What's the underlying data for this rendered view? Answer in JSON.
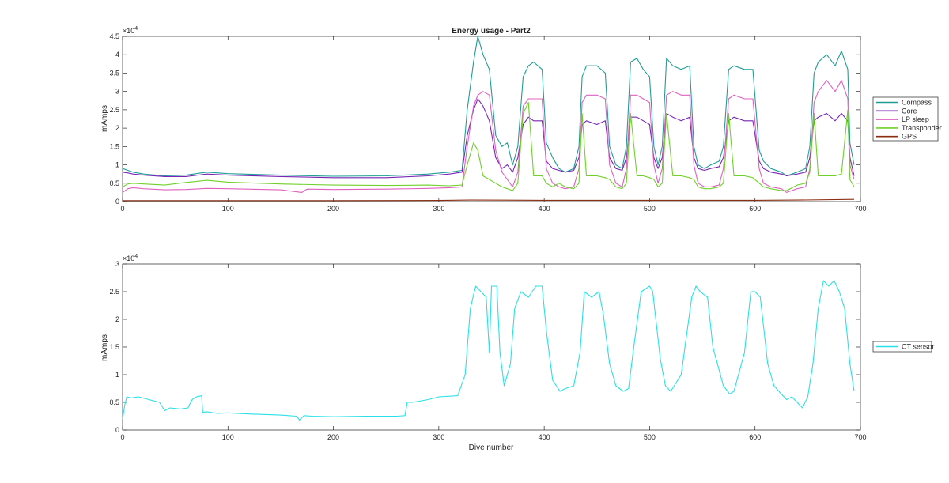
{
  "chart_data": [
    {
      "type": "line",
      "title": "Energy usage - Part2",
      "xlabel": "",
      "ylabel": "mAmps",
      "xlim": [
        0,
        700
      ],
      "ylim": [
        0,
        45000
      ],
      "y_exponent_label": "×10",
      "y_exponent": "4",
      "xticks": [
        "0",
        "100",
        "200",
        "300",
        "400",
        "500",
        "600",
        "700"
      ],
      "yticks": [
        "0",
        "0.5",
        "1",
        "1.5",
        "2",
        "2.5",
        "3",
        "3.5",
        "4",
        "4.5"
      ],
      "xtick_values": [
        0,
        100,
        200,
        300,
        400,
        500,
        600,
        700
      ],
      "ytick_values": [
        0,
        5000,
        10000,
        15000,
        20000,
        25000,
        30000,
        35000,
        40000,
        45000
      ],
      "legend_position": "right",
      "series": [
        {
          "name": "Compass",
          "color": "#1f9e96",
          "x": [
            0,
            5,
            10,
            20,
            40,
            60,
            80,
            100,
            150,
            200,
            250,
            290,
            310,
            322,
            327,
            333,
            337,
            342,
            348,
            354,
            360,
            365,
            370,
            375,
            380,
            385,
            390,
            398,
            402,
            408,
            414,
            420,
            428,
            433,
            436,
            440,
            450,
            458,
            462,
            468,
            474,
            478,
            482,
            488,
            494,
            500,
            504,
            508,
            512,
            516,
            522,
            530,
            538,
            542,
            546,
            552,
            558,
            566,
            570,
            575,
            580,
            590,
            598,
            604,
            608,
            615,
            625,
            630,
            640,
            648,
            652,
            656,
            660,
            668,
            676,
            682,
            688,
            690,
            694
          ],
          "y": [
            9000,
            8500,
            8000,
            7500,
            7000,
            7200,
            8000,
            7600,
            7200,
            6900,
            7000,
            7500,
            8000,
            8500,
            25000,
            38000,
            45000,
            40000,
            36000,
            18000,
            15000,
            16000,
            10000,
            15000,
            34000,
            37000,
            38000,
            36000,
            16000,
            12000,
            9000,
            8000,
            9000,
            15000,
            34000,
            37000,
            37000,
            35000,
            15000,
            10000,
            9000,
            15000,
            38000,
            39000,
            36000,
            34000,
            15000,
            10000,
            15000,
            39000,
            37000,
            36000,
            37000,
            15000,
            10000,
            9000,
            10000,
            11000,
            15000,
            36000,
            37000,
            36000,
            36000,
            14000,
            11000,
            9000,
            8000,
            7000,
            8000,
            9000,
            15000,
            35000,
            38000,
            40000,
            37000,
            41000,
            36000,
            16000,
            10000
          ]
        },
        {
          "name": "Core",
          "color": "#7a26b5",
          "x": [
            0,
            5,
            10,
            20,
            40,
            60,
            80,
            100,
            150,
            200,
            250,
            290,
            310,
            322,
            327,
            333,
            337,
            342,
            348,
            354,
            360,
            365,
            370,
            375,
            380,
            385,
            390,
            398,
            402,
            408,
            414,
            420,
            428,
            433,
            436,
            440,
            450,
            458,
            462,
            468,
            474,
            478,
            482,
            488,
            494,
            500,
            504,
            508,
            512,
            516,
            522,
            530,
            538,
            542,
            546,
            552,
            558,
            566,
            570,
            575,
            580,
            590,
            598,
            604,
            608,
            615,
            625,
            630,
            640,
            648,
            652,
            656,
            660,
            668,
            676,
            682,
            688,
            690,
            694
          ],
          "y": [
            8000,
            7800,
            7500,
            7200,
            6800,
            6800,
            7500,
            7200,
            6800,
            6500,
            6500,
            7000,
            7500,
            8000,
            18000,
            25000,
            28000,
            26000,
            22000,
            12000,
            9000,
            10000,
            8000,
            12000,
            21000,
            23000,
            22000,
            22000,
            11000,
            9000,
            8500,
            8000,
            8500,
            12000,
            21000,
            22000,
            21000,
            22000,
            12000,
            9000,
            8500,
            12000,
            23000,
            23000,
            22000,
            21000,
            12000,
            9000,
            12000,
            24000,
            23000,
            22000,
            23000,
            12000,
            9000,
            8500,
            9000,
            9500,
            12000,
            22000,
            23000,
            22000,
            22000,
            11000,
            9000,
            8000,
            7500,
            7000,
            7500,
            8000,
            12000,
            22000,
            23000,
            24000,
            22000,
            24000,
            22000,
            12000,
            7000
          ]
        },
        {
          "name": "LP sleep",
          "color": "#e060c0",
          "x": [
            0,
            5,
            10,
            20,
            40,
            60,
            80,
            100,
            150,
            170,
            175,
            200,
            250,
            290,
            310,
            322,
            327,
            333,
            337,
            342,
            348,
            354,
            360,
            365,
            370,
            375,
            380,
            385,
            390,
            398,
            402,
            408,
            414,
            420,
            428,
            433,
            436,
            440,
            450,
            458,
            462,
            468,
            474,
            478,
            482,
            488,
            494,
            500,
            504,
            508,
            512,
            516,
            522,
            530,
            538,
            542,
            546,
            552,
            558,
            566,
            570,
            575,
            580,
            590,
            598,
            604,
            608,
            615,
            625,
            630,
            640,
            648,
            652,
            656,
            660,
            668,
            676,
            682,
            688,
            690,
            694
          ],
          "y": [
            2500,
            3500,
            3800,
            3500,
            3200,
            3300,
            3600,
            3500,
            3200,
            2500,
            3400,
            3300,
            3400,
            3600,
            3800,
            4000,
            15000,
            26000,
            29000,
            30000,
            29000,
            14000,
            8000,
            6000,
            4000,
            8000,
            26000,
            28000,
            28000,
            28000,
            9000,
            5000,
            4000,
            3500,
            4000,
            9000,
            27000,
            29000,
            29000,
            28000,
            10000,
            5000,
            4000,
            9000,
            29000,
            29000,
            28000,
            27000,
            10000,
            5000,
            9000,
            29000,
            30000,
            29000,
            29000,
            10000,
            5000,
            4000,
            4000,
            4500,
            9000,
            28000,
            29000,
            28000,
            28000,
            9000,
            5000,
            4000,
            3500,
            2500,
            3500,
            4000,
            9000,
            27000,
            30000,
            33000,
            30000,
            33000,
            28000,
            10000,
            6000
          ]
        },
        {
          "name": "Transponder",
          "color": "#6fd12a",
          "x": [
            0,
            5,
            10,
            20,
            40,
            60,
            80,
            100,
            150,
            200,
            250,
            290,
            310,
            322,
            327,
            333,
            337,
            342,
            348,
            354,
            360,
            365,
            370,
            375,
            380,
            385,
            390,
            398,
            402,
            408,
            414,
            420,
            428,
            433,
            436,
            440,
            450,
            458,
            462,
            468,
            474,
            478,
            482,
            488,
            494,
            500,
            504,
            508,
            512,
            516,
            522,
            530,
            538,
            542,
            546,
            552,
            558,
            566,
            570,
            575,
            580,
            590,
            598,
            604,
            608,
            615,
            625,
            630,
            640,
            648,
            652,
            656,
            660,
            668,
            676,
            682,
            688,
            690,
            694
          ],
          "y": [
            4000,
            4800,
            5000,
            4800,
            4500,
            5200,
            5800,
            5300,
            4800,
            4500,
            4400,
            4500,
            4300,
            4500,
            10000,
            16000,
            14000,
            7000,
            6000,
            5000,
            4000,
            3500,
            3000,
            5000,
            24000,
            27000,
            7000,
            7000,
            5000,
            4000,
            5000,
            4000,
            3500,
            5000,
            24000,
            7000,
            7000,
            6500,
            6000,
            4000,
            3500,
            5000,
            24000,
            7000,
            7000,
            6500,
            6000,
            4000,
            5000,
            24000,
            7000,
            7000,
            6500,
            6000,
            4000,
            3500,
            3500,
            4000,
            5000,
            24000,
            7000,
            7000,
            6500,
            5000,
            4000,
            3500,
            3000,
            3000,
            4500,
            5000,
            8000,
            24000,
            7000,
            7000,
            7000,
            7500,
            25000,
            6000,
            4000
          ]
        },
        {
          "name": "GPS",
          "color": "#8b2e12",
          "x": [
            0,
            100,
            200,
            300,
            330,
            400,
            500,
            600,
            640,
            694
          ],
          "y": [
            250,
            250,
            250,
            300,
            400,
            350,
            350,
            350,
            400,
            600
          ]
        }
      ]
    },
    {
      "type": "line",
      "title": "",
      "xlabel": "Dive number",
      "ylabel": "mAmps",
      "xlim": [
        0,
        700
      ],
      "ylim": [
        0,
        30000
      ],
      "y_exponent_label": "×10",
      "y_exponent": "4",
      "xticks": [
        "0",
        "100",
        "200",
        "300",
        "400",
        "500",
        "600",
        "700"
      ],
      "yticks": [
        "0",
        "0.5",
        "1",
        "1.5",
        "2",
        "2.5",
        "3"
      ],
      "xtick_values": [
        0,
        100,
        200,
        300,
        400,
        500,
        600,
        700
      ],
      "ytick_values": [
        0,
        5000,
        10000,
        15000,
        20000,
        25000,
        30000
      ],
      "legend_position": "right",
      "series": [
        {
          "name": "CT sensor",
          "color": "#29e0e8",
          "x": [
            0,
            2,
            4,
            8,
            15,
            25,
            35,
            40,
            45,
            55,
            62,
            66,
            70,
            75,
            76,
            80,
            90,
            100,
            120,
            150,
            165,
            168,
            172,
            180,
            200,
            230,
            260,
            268,
            270,
            275,
            290,
            300,
            318,
            325,
            330,
            335,
            340,
            345,
            348,
            350,
            355,
            358,
            362,
            368,
            372,
            378,
            385,
            392,
            398,
            402,
            408,
            415,
            420,
            428,
            434,
            438,
            445,
            452,
            456,
            462,
            468,
            475,
            480,
            485,
            492,
            500,
            503,
            510,
            515,
            520,
            530,
            540,
            544,
            548,
            555,
            560,
            570,
            576,
            580,
            590,
            596,
            600,
            605,
            612,
            618,
            625,
            630,
            635,
            640,
            645,
            650,
            655,
            660,
            665,
            670,
            675,
            680,
            685,
            690,
            694
          ],
          "y": [
            2000,
            4500,
            6000,
            5800,
            6000,
            5500,
            5000,
            3500,
            4000,
            3800,
            4000,
            5500,
            6000,
            6200,
            3200,
            3300,
            3000,
            3100,
            2900,
            2700,
            2500,
            1800,
            2600,
            2500,
            2400,
            2500,
            2500,
            2600,
            5000,
            5000,
            5500,
            6000,
            6200,
            10000,
            22000,
            26000,
            25000,
            24000,
            14000,
            26000,
            26000,
            14000,
            8000,
            12000,
            22000,
            25000,
            24000,
            26000,
            26000,
            18000,
            9000,
            7000,
            7500,
            8000,
            14000,
            25000,
            24000,
            25000,
            21000,
            12000,
            8000,
            7000,
            7500,
            15000,
            25000,
            26000,
            25000,
            13000,
            8000,
            7000,
            10000,
            24000,
            26000,
            25000,
            24000,
            15000,
            8000,
            6500,
            7000,
            14000,
            25000,
            25000,
            24000,
            12000,
            8000,
            6500,
            5500,
            6000,
            5000,
            4000,
            6000,
            12000,
            22000,
            27000,
            26000,
            27000,
            25000,
            22000,
            12000,
            7000
          ]
        }
      ]
    }
  ]
}
